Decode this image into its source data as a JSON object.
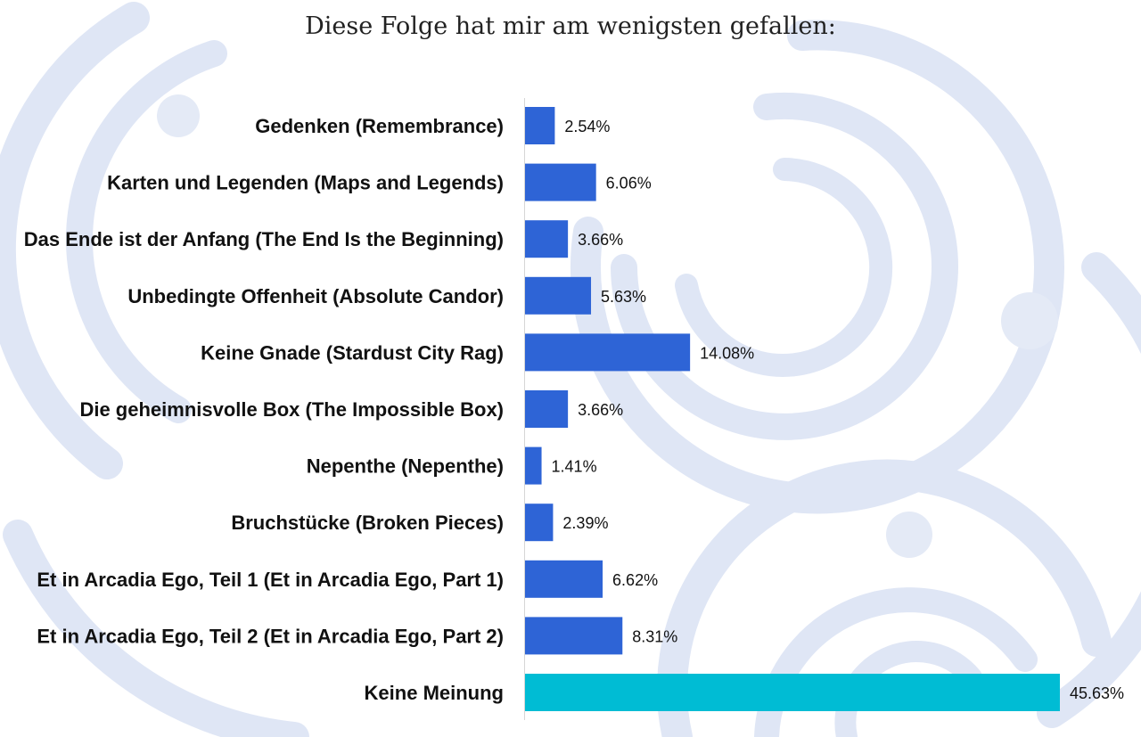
{
  "chart_data": {
    "type": "bar",
    "orientation": "horizontal",
    "title": "Diese Folge hat mir am wenigsten gefallen:",
    "categories": [
      "Gedenken (Remembrance)",
      "Karten und Legenden (Maps and Legends)",
      "Das Ende ist der Anfang (The End Is the Beginning)",
      "Unbedingte Offenheit (Absolute Candor)",
      "Keine Gnade (Stardust City Rag)",
      "Die geheimnisvolle Box (The Impossible Box)",
      "Nepenthe (Nepenthe)",
      "Bruchstücke (Broken Pieces)",
      "Et in Arcadia Ego, Teil 1 (Et in Arcadia Ego, Part 1)",
      "Et in Arcadia Ego, Teil 2 (Et in Arcadia Ego, Part 2)",
      "Keine Meinung"
    ],
    "values": [
      2.54,
      6.06,
      3.66,
      5.63,
      14.08,
      3.66,
      1.41,
      2.39,
      6.62,
      8.31,
      45.63
    ],
    "value_labels": [
      "2.54%",
      "6.06%",
      "3.66%",
      "5.63%",
      "14.08%",
      "3.66%",
      "1.41%",
      "2.39%",
      "6.62%",
      "8.31%",
      "45.63%"
    ],
    "bar_colors": [
      "#2e64d6",
      "#2e64d6",
      "#2e64d6",
      "#2e64d6",
      "#2e64d6",
      "#2e64d6",
      "#2e64d6",
      "#2e64d6",
      "#2e64d6",
      "#2e64d6",
      "#00bcd4"
    ],
    "xlim": [
      0,
      45.63
    ],
    "grid": false,
    "xlabel": "",
    "ylabel": ""
  }
}
